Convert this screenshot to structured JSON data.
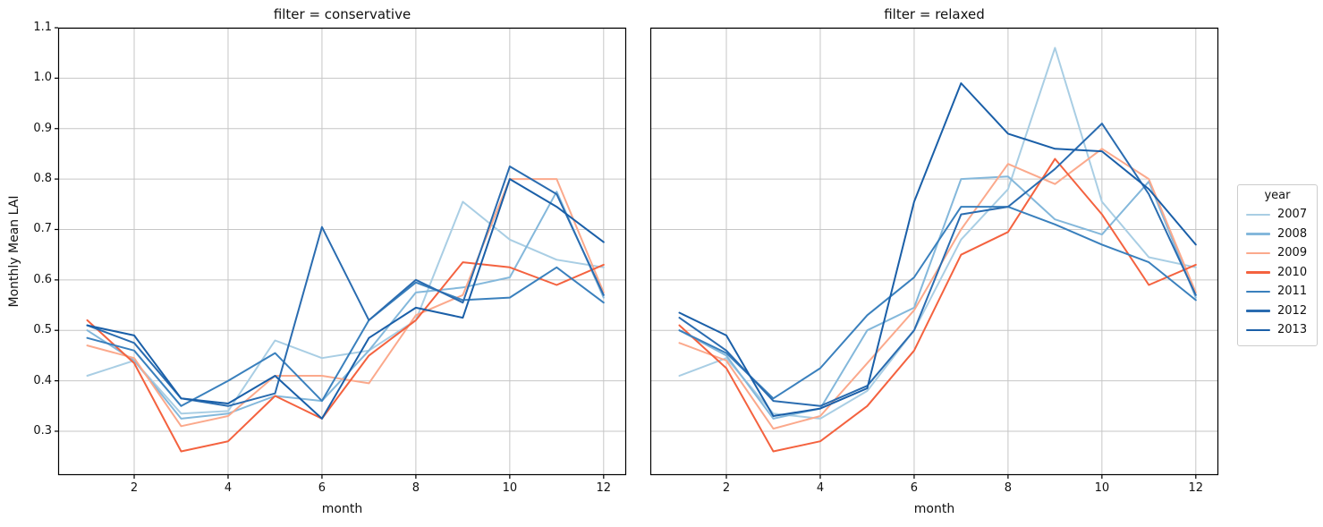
{
  "figure": {
    "background": "#ffffff"
  },
  "chart_data": {
    "type": "line",
    "x": [
      1,
      2,
      3,
      4,
      5,
      6,
      7,
      8,
      9,
      10,
      11,
      12
    ],
    "xlabel": "month",
    "ylabel": "Monthly Mean LAI",
    "xticks": [
      2,
      4,
      6,
      8,
      10,
      12
    ],
    "yticks": [
      0.3,
      0.4,
      0.5,
      0.6,
      0.7,
      0.8,
      0.9,
      1.0,
      1.1
    ],
    "xlim": [
      0.38,
      12.48
    ],
    "ylim": [
      0.213,
      1.1
    ],
    "grid": true,
    "grid_color": "#c6c6c6",
    "axis_color": "#000000",
    "legend": {
      "title": "year",
      "position": "right",
      "entries": [
        "2007",
        "2008",
        "2009",
        "2010",
        "2011",
        "2012",
        "2013"
      ]
    },
    "palette": {
      "2007": "#a9cee4",
      "2008": "#84b8db",
      "2009": "#fba98c",
      "2010": "#f4623f",
      "2011": "#3a80bd",
      "2012": "#2a6cb0",
      "2013": "#1a5fa8"
    },
    "facets": [
      {
        "title": "filter = conservative",
        "series": [
          {
            "name": "2007",
            "color": "#a9cee4",
            "values": [
              0.41,
              0.44,
              0.335,
              0.34,
              0.48,
              0.445,
              0.46,
              0.52,
              0.755,
              0.68,
              0.64,
              0.625
            ]
          },
          {
            "name": "2008",
            "color": "#84b8db",
            "values": [
              0.5,
              0.44,
              0.325,
              0.335,
              0.37,
              0.36,
              0.46,
              0.575,
              0.585,
              0.605,
              0.775,
              0.565
            ]
          },
          {
            "name": "2009",
            "color": "#fba98c",
            "values": [
              0.47,
              0.445,
              0.31,
              0.33,
              0.41,
              0.41,
              0.395,
              0.53,
              0.57,
              0.8,
              0.8,
              0.575
            ]
          },
          {
            "name": "2010",
            "color": "#f4623f",
            "values": [
              0.52,
              0.435,
              0.26,
              0.28,
              0.37,
              0.325,
              0.45,
              0.52,
              0.635,
              0.625,
              0.59,
              0.63
            ]
          },
          {
            "name": "2011",
            "color": "#3a80bd",
            "values": [
              0.485,
              0.46,
              0.35,
              0.4,
              0.455,
              0.36,
              0.52,
              0.595,
              0.56,
              0.565,
              0.625,
              0.555
            ]
          },
          {
            "name": "2012",
            "color": "#2a6cb0",
            "values": [
              0.51,
              0.475,
              0.365,
              0.35,
              0.375,
              0.705,
              0.52,
              0.6,
              0.555,
              0.825,
              0.77,
              0.57
            ]
          },
          {
            "name": "2013",
            "color": "#1a5fa8",
            "values": [
              0.51,
              0.49,
              0.365,
              0.355,
              0.41,
              0.325,
              0.485,
              0.545,
              0.525,
              0.8,
              0.745,
              0.675
            ]
          }
        ]
      },
      {
        "title": "filter = relaxed",
        "series": [
          {
            "name": "2007",
            "color": "#a9cee4",
            "values": [
              0.41,
              0.445,
              0.335,
              0.325,
              0.38,
              0.5,
              0.68,
              0.78,
              1.06,
              0.755,
              0.645,
              0.625
            ]
          },
          {
            "name": "2008",
            "color": "#84b8db",
            "values": [
              0.5,
              0.45,
              0.325,
              0.345,
              0.5,
              0.545,
              0.8,
              0.805,
              0.72,
              0.69,
              0.795,
              0.565
            ]
          },
          {
            "name": "2009",
            "color": "#fba98c",
            "values": [
              0.475,
              0.44,
              0.305,
              0.33,
              0.435,
              0.54,
              0.7,
              0.83,
              0.79,
              0.86,
              0.8,
              0.575
            ]
          },
          {
            "name": "2010",
            "color": "#f4623f",
            "values": [
              0.51,
              0.425,
              0.26,
              0.28,
              0.35,
              0.46,
              0.65,
              0.695,
              0.84,
              0.73,
              0.59,
              0.63
            ]
          },
          {
            "name": "2011",
            "color": "#3a80bd",
            "values": [
              0.5,
              0.455,
              0.365,
              0.425,
              0.53,
              0.605,
              0.745,
              0.745,
              0.71,
              0.67,
              0.635,
              0.56
            ]
          },
          {
            "name": "2012",
            "color": "#2a6cb0",
            "values": [
              0.525,
              0.46,
              0.36,
              0.35,
              0.39,
              0.5,
              0.73,
              0.745,
              0.82,
              0.91,
              0.77,
              0.57
            ]
          },
          {
            "name": "2013",
            "color": "#1a5fa8",
            "values": [
              0.535,
              0.49,
              0.33,
              0.345,
              0.385,
              0.755,
              0.99,
              0.89,
              0.86,
              0.855,
              0.78,
              0.67
            ]
          }
        ]
      }
    ]
  }
}
